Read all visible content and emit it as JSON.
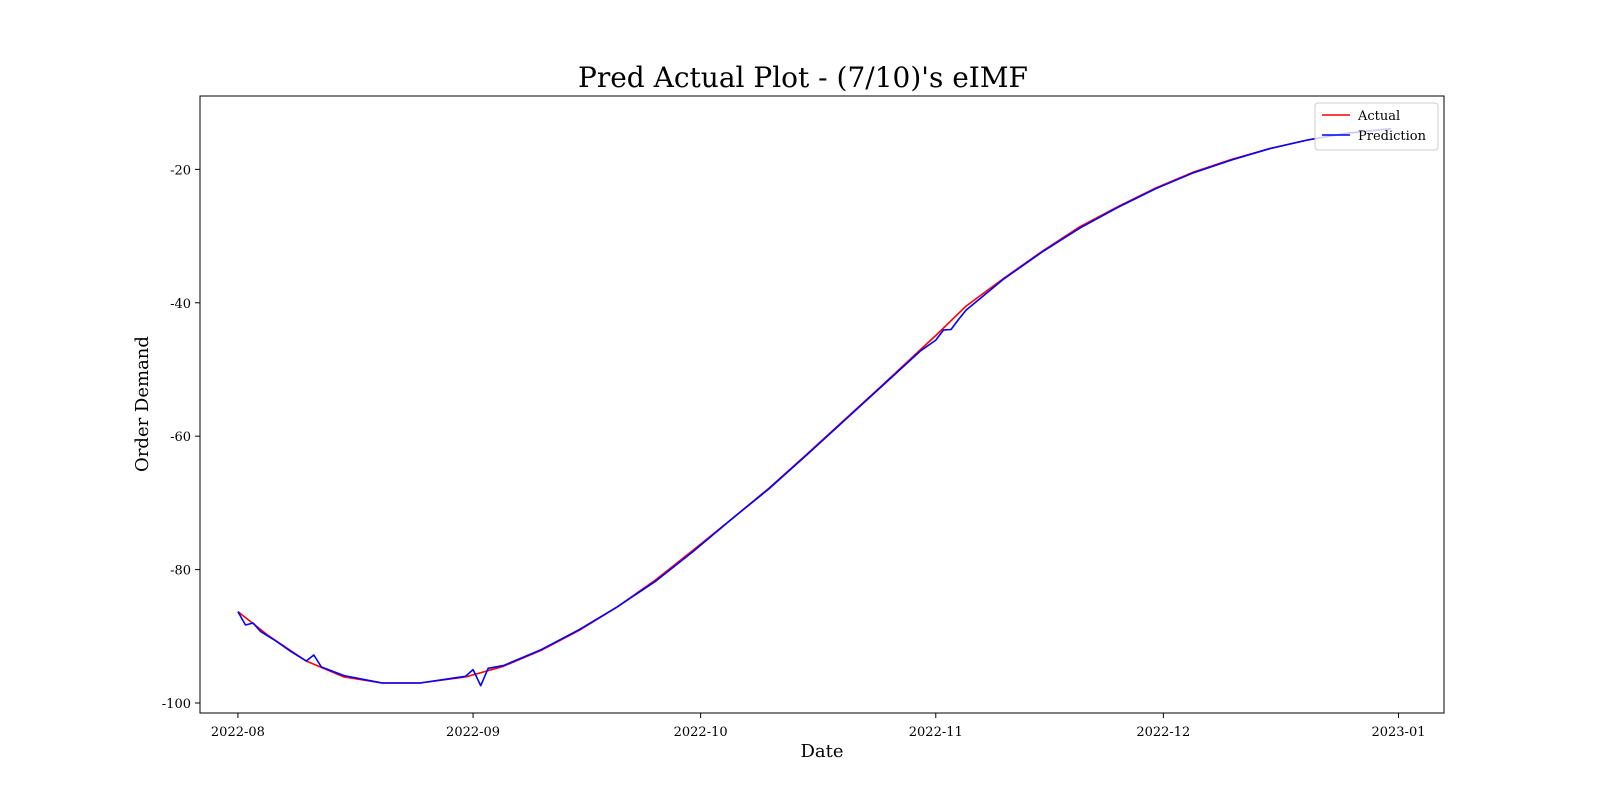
{
  "chart_data": {
    "type": "line",
    "title": "Pred Actual Plot - (7/10)'s eIMF",
    "xlabel": "Date",
    "ylabel": "Order Demand",
    "x_axis_type": "date",
    "xlim": [
      "2022-07-27",
      "2023-01-07"
    ],
    "ylim": [
      -101.5,
      -9
    ],
    "x_ticks": [
      "2022-08-01",
      "2022-09-01",
      "2022-10-01",
      "2022-11-01",
      "2022-12-01",
      "2023-01-01"
    ],
    "x_tick_labels": [
      "2022-08",
      "2022-09",
      "2022-10",
      "2022-11",
      "2022-12",
      "2023-01"
    ],
    "y_ticks": [
      -20,
      -40,
      -60,
      -80,
      -100
    ],
    "y_tick_labels": [
      "-20",
      "-40",
      "-60",
      "-80",
      "-100"
    ],
    "grid": false,
    "legend_position": "upper right",
    "series": [
      {
        "name": "Actual",
        "color": "#ff0000",
        "points": [
          [
            "2022-08-01",
            -86.3
          ],
          [
            "2022-08-05",
            -89.9
          ],
          [
            "2022-08-10",
            -93.7
          ],
          [
            "2022-08-15",
            -96.1
          ],
          [
            "2022-08-20",
            -97.0
          ],
          [
            "2022-08-25",
            -97.0
          ],
          [
            "2022-08-31",
            -96.1
          ],
          [
            "2022-09-05",
            -94.5
          ],
          [
            "2022-09-10",
            -92.1
          ],
          [
            "2022-09-15",
            -89.1
          ],
          [
            "2022-09-20",
            -85.6
          ],
          [
            "2022-09-25",
            -81.6
          ],
          [
            "2022-09-30",
            -77.1
          ],
          [
            "2022-10-05",
            -72.5
          ],
          [
            "2022-10-10",
            -67.8
          ],
          [
            "2022-10-15",
            -62.7
          ],
          [
            "2022-10-20",
            -57.5
          ],
          [
            "2022-10-25",
            -52.3
          ],
          [
            "2022-10-30",
            -47.0
          ],
          [
            "2022-11-01",
            -44.9
          ],
          [
            "2022-11-05",
            -40.5
          ],
          [
            "2022-11-10",
            -36.3
          ],
          [
            "2022-11-15",
            -32.3
          ],
          [
            "2022-11-20",
            -28.6
          ],
          [
            "2022-11-25",
            -25.6
          ],
          [
            "2022-11-30",
            -22.8
          ],
          [
            "2022-12-05",
            -20.4
          ],
          [
            "2022-12-10",
            -18.5
          ],
          [
            "2022-12-15",
            -16.9
          ],
          [
            "2022-12-20",
            -15.6
          ],
          [
            "2022-12-25",
            -14.6
          ],
          [
            "2022-12-31",
            -13.9
          ]
        ]
      },
      {
        "name": "Prediction",
        "color": "#0000ff",
        "points": [
          [
            "2022-08-01",
            -86.3
          ],
          [
            "2022-08-02",
            -88.3
          ],
          [
            "2022-08-03",
            -88.0
          ],
          [
            "2022-08-04",
            -89.3
          ],
          [
            "2022-08-06",
            -90.7
          ],
          [
            "2022-08-08",
            -92.3
          ],
          [
            "2022-08-10",
            -93.7
          ],
          [
            "2022-08-11",
            -92.8
          ],
          [
            "2022-08-12",
            -94.6
          ],
          [
            "2022-08-15",
            -95.9
          ],
          [
            "2022-08-20",
            -97.0
          ],
          [
            "2022-08-25",
            -97.0
          ],
          [
            "2022-08-31",
            -96.0
          ],
          [
            "2022-09-01",
            -95.0
          ],
          [
            "2022-09-02",
            -97.4
          ],
          [
            "2022-09-03",
            -94.8
          ],
          [
            "2022-09-05",
            -94.4
          ],
          [
            "2022-09-10",
            -92.0
          ],
          [
            "2022-09-15",
            -89.0
          ],
          [
            "2022-09-20",
            -85.6
          ],
          [
            "2022-09-25",
            -81.8
          ],
          [
            "2022-09-30",
            -77.3
          ],
          [
            "2022-10-05",
            -72.5
          ],
          [
            "2022-10-10",
            -67.9
          ],
          [
            "2022-10-15",
            -62.8
          ],
          [
            "2022-10-20",
            -57.6
          ],
          [
            "2022-10-25",
            -52.4
          ],
          [
            "2022-10-30",
            -47.2
          ],
          [
            "2022-11-01",
            -45.6
          ],
          [
            "2022-11-02",
            -44.1
          ],
          [
            "2022-11-03",
            -44.0
          ],
          [
            "2022-11-04",
            -42.5
          ],
          [
            "2022-11-05",
            -41.1
          ],
          [
            "2022-11-10",
            -36.4
          ],
          [
            "2022-11-15",
            -32.4
          ],
          [
            "2022-11-20",
            -28.8
          ],
          [
            "2022-11-25",
            -25.7
          ],
          [
            "2022-11-30",
            -22.9
          ],
          [
            "2022-12-05",
            -20.5
          ],
          [
            "2022-12-10",
            -18.6
          ],
          [
            "2022-12-15",
            -16.9
          ],
          [
            "2022-12-20",
            -15.6
          ],
          [
            "2022-12-25",
            -14.6
          ],
          [
            "2022-12-31",
            -13.9
          ]
        ]
      }
    ]
  }
}
